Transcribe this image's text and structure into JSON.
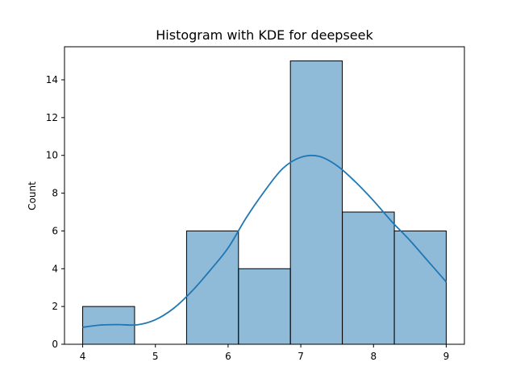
{
  "chart_data": {
    "type": "bar",
    "title": "Histogram with KDE for deepseek",
    "xlabel": "",
    "ylabel": "Count",
    "xlim": [
      3.75,
      9.25
    ],
    "ylim": [
      0,
      15.75
    ],
    "x_ticks": [
      4,
      5,
      6,
      7,
      8,
      9
    ],
    "y_ticks": [
      0,
      2,
      4,
      6,
      8,
      10,
      12,
      14
    ],
    "grid": false,
    "bar_color": "#1f77b4",
    "bar_edge_color": "#000000",
    "line_color": "#1f77b4",
    "bins": [
      {
        "x0": 4.0,
        "x1": 4.714,
        "count": 2
      },
      {
        "x0": 4.714,
        "x1": 5.429,
        "count": 0
      },
      {
        "x0": 5.429,
        "x1": 6.143,
        "count": 6
      },
      {
        "x0": 6.143,
        "x1": 6.857,
        "count": 4
      },
      {
        "x0": 6.857,
        "x1": 7.571,
        "count": 15
      },
      {
        "x0": 7.571,
        "x1": 8.286,
        "count": 7
      },
      {
        "x0": 8.286,
        "x1": 9.0,
        "count": 6
      }
    ],
    "kde": {
      "x": [
        4.0,
        4.25,
        4.5,
        4.75,
        5.0,
        5.25,
        5.5,
        5.75,
        6.0,
        6.25,
        6.5,
        6.75,
        7.0,
        7.25,
        7.5,
        7.75,
        8.0,
        8.25,
        8.5,
        8.75,
        9.0
      ],
      "y": [
        0.9,
        1.02,
        1.04,
        1.03,
        1.3,
        1.9,
        2.8,
        3.9,
        5.1,
        6.7,
        8.1,
        9.3,
        9.9,
        9.95,
        9.45,
        8.6,
        7.6,
        6.5,
        5.5,
        4.4,
        3.3
      ]
    }
  }
}
